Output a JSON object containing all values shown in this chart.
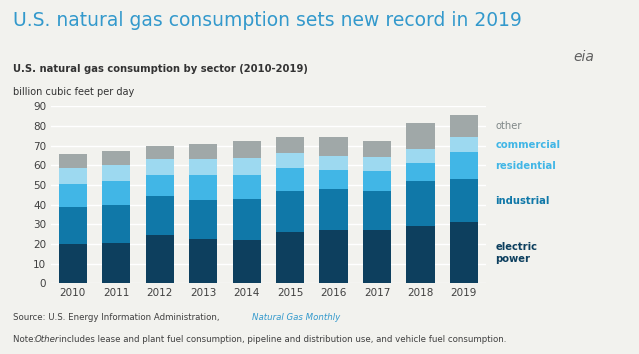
{
  "title": "U.S. natural gas consumption sets new record in 2019",
  "subtitle": "U.S. natural gas consumption by sector (2010-2019)",
  "ylabel": "billion cubic feet per day",
  "years": [
    2010,
    2011,
    2012,
    2013,
    2014,
    2015,
    2016,
    2017,
    2018,
    2019
  ],
  "electric_power": [
    20.0,
    20.5,
    24.5,
    22.5,
    22.0,
    26.0,
    27.0,
    27.0,
    29.0,
    31.0
  ],
  "industrial": [
    19.0,
    19.5,
    20.0,
    20.0,
    21.0,
    21.0,
    21.0,
    20.0,
    23.0,
    22.0
  ],
  "residential": [
    11.5,
    12.0,
    10.5,
    12.5,
    12.0,
    11.5,
    9.5,
    10.0,
    9.0,
    13.5
  ],
  "commercial": [
    8.0,
    8.0,
    8.0,
    8.0,
    8.5,
    7.5,
    7.0,
    7.0,
    7.0,
    8.0
  ],
  "other": [
    7.0,
    7.0,
    7.0,
    8.0,
    9.0,
    8.5,
    10.0,
    8.5,
    13.5,
    11.0
  ],
  "colors": {
    "electric_power": "#0d3f5e",
    "industrial": "#1078a8",
    "residential": "#41b6e6",
    "commercial": "#9dd9f0",
    "other": "#a0a8a8"
  },
  "text_colors": {
    "other": "#808888",
    "commercial": "#41b6e6",
    "residential": "#41b6e6",
    "industrial": "#1078a8",
    "electric_power": "#0d3f5e"
  },
  "ylim": [
    0,
    90
  ],
  "yticks": [
    0,
    10,
    20,
    30,
    40,
    50,
    60,
    70,
    80,
    90
  ],
  "bg_color": "#f2f2ee",
  "title_color": "#3399cc",
  "grid_color": "#ffffff"
}
